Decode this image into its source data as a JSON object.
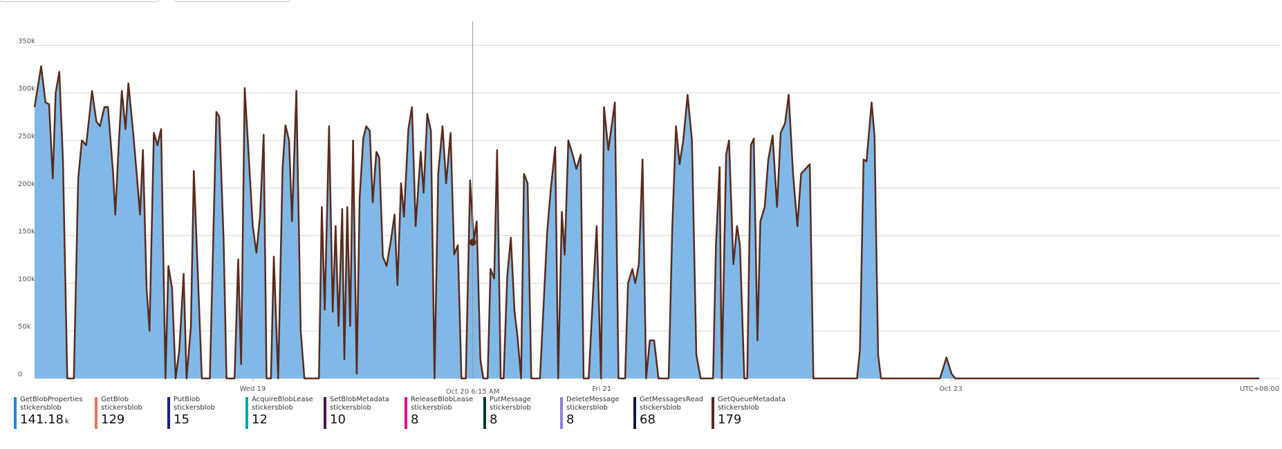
{
  "chart_data": {
    "type": "area",
    "fill": "#80b9e8",
    "line_color": "#5a2a1a",
    "x": [
      0,
      0.9,
      1.5,
      2.0,
      2.5,
      2.9,
      3.4,
      3.9,
      4.5,
      5.4,
      6.0,
      6.5,
      7.1,
      7.9,
      8.5,
      9.0,
      9.6,
      10.1,
      10.8,
      11.1,
      11.6,
      12.0,
      12.5,
      12.9,
      13.6,
      14.1,
      14.5,
      14.9,
      15.4,
      15.8,
      16.4,
      16.9,
      17.4,
      18.0,
      18.4,
      18.9,
      19.4,
      19.9,
      20.5,
      20.9,
      21.5,
      21.9,
      22.6,
      23.0,
      24.1,
      25.0,
      25.4,
      26.0,
      26.4,
      27.5,
      28.0,
      28.4,
      28.9,
      29.4,
      30.0,
      30.5,
      31.0,
      31.5,
      31.9,
      32.5,
      32.9,
      33.5,
      34.1,
      34.5,
      35.0,
      35.4,
      36.0,
      36.6,
      37.1,
      39.1,
      39.5,
      39.9,
      40.5,
      41.0,
      41.4,
      41.8,
      42.3,
      42.6,
      43.0,
      43.4,
      43.8,
      44.3,
      44.7,
      45.2,
      45.6,
      46.1,
      46.5,
      47.0,
      47.4,
      47.9,
      48.4,
      49.0,
      49.5,
      49.9,
      50.4,
      50.8,
      51.4,
      51.9,
      52.4,
      53.1,
      53.5,
      54.0,
      54.5,
      55.0,
      55.5,
      56.1,
      56.6,
      57.2,
      57.7,
      58.2,
      58.7,
      59.3,
      59.9,
      60.4,
      60.8,
      61.3,
      61.7,
      62.3,
      62.7,
      63.2,
      63.6,
      64.1,
      64.5,
      65.0,
      65.5,
      66.0,
      66.4,
      66.9,
      67.3,
      67.8,
      68.3,
      69.5,
      70.5,
      71.0,
      71.6,
      72.0,
      72.5,
      72.9,
      73.4,
      74.0,
      74.5,
      75.1,
      75.5,
      76.2,
      76.8,
      77.3,
      77.9,
      78.3,
      78.9,
      79.8,
      80.3,
      81.2,
      81.6,
      82.2,
      82.6,
      83.1,
      83.6,
      84.1,
      84.6,
      85.2,
      85.8,
      87.2,
      87.7,
      88.2,
      88.7,
      89.2,
      89.8,
      90.4,
      91.0,
      91.6,
      93.3,
      93.7,
      94.2,
      94.5,
      95.1,
      95.5,
      96.1,
      96.6,
      97.0,
      97.6,
      98.0,
      98.5,
      98.9,
      99.4,
      99.8,
      100.4,
      100.9,
      101.5,
      102.1,
      102.6,
      103.2,
      103.7,
      104.3,
      104.9,
      105.4,
      106.0,
      106.6,
      107.1,
      113.1,
      113.5,
      114.0,
      114.4,
      115.1,
      115.5,
      116.0,
      116.4,
      124.5,
      125.4,
      126.1,
      126.6,
      168.4
    ],
    "values": [
      285000,
      328000,
      290000,
      288000,
      210000,
      300000,
      322000,
      230000,
      0,
      0,
      210000,
      250000,
      245000,
      302000,
      270000,
      265000,
      285000,
      285000,
      215000,
      172000,
      250000,
      302000,
      262000,
      310000,
      255000,
      210000,
      172000,
      240000,
      95000,
      50000,
      258000,
      245000,
      262000,
      0,
      118000,
      95000,
      0,
      30000,
      110000,
      0,
      55000,
      218000,
      80000,
      0,
      0,
      280000,
      275000,
      145000,
      0,
      0,
      125000,
      15000,
      305000,
      240000,
      160000,
      132000,
      170000,
      256000,
      0,
      0,
      128000,
      0,
      220000,
      266000,
      250000,
      165000,
      302000,
      50000,
      0,
      0,
      180000,
      72000,
      265000,
      70000,
      160000,
      55000,
      178000,
      20000,
      180000,
      55000,
      250000,
      5000,
      190000,
      252000,
      265000,
      260000,
      185000,
      238000,
      232000,
      128000,
      118000,
      145000,
      172000,
      98000,
      205000,
      170000,
      262000,
      285000,
      160000,
      238000,
      195000,
      278000,
      260000,
      0,
      215000,
      265000,
      205000,
      258000,
      130000,
      140000,
      0,
      0,
      208000,
      145000,
      165000,
      20000,
      0,
      0,
      115000,
      105000,
      240000,
      0,
      0,
      108000,
      148000,
      70000,
      45000,
      0,
      215000,
      205000,
      0,
      0,
      155000,
      200000,
      243000,
      0,
      175000,
      130000,
      250000,
      235000,
      220000,
      235000,
      0,
      0,
      90000,
      160000,
      0,
      285000,
      240000,
      290000,
      0,
      0,
      100000,
      115000,
      100000,
      120000,
      230000,
      0,
      40000,
      40000,
      0,
      0,
      160000,
      265000,
      225000,
      250000,
      298000,
      250000,
      25000,
      0,
      0,
      140000,
      222000,
      0,
      235000,
      250000,
      120000,
      160000,
      140000,
      0,
      0,
      245000,
      252000,
      40000,
      165000,
      180000,
      230000,
      255000,
      180000,
      258000,
      268000,
      298000,
      215000,
      160000,
      215000,
      220000,
      225000,
      0,
      0,
      30000,
      230000,
      228000,
      290000,
      255000,
      25000,
      0,
      0,
      22000,
      5000,
      0,
      0
    ],
    "xlim": [
      0,
      168.4
    ],
    "xticks": [
      {
        "value": 30,
        "label": "Wed 19"
      },
      {
        "value": 78,
        "label": "Fri 21"
      },
      {
        "value": 126,
        "label": "Oct 23"
      }
    ],
    "ylim": [
      0,
      375000
    ],
    "yticks": [
      {
        "value": 0,
        "label": "0"
      },
      {
        "value": 50000,
        "label": "50k"
      },
      {
        "value": 100000,
        "label": "100k"
      },
      {
        "value": 150000,
        "label": "150k"
      },
      {
        "value": 200000,
        "label": "200k"
      },
      {
        "value": 250000,
        "label": "250k"
      },
      {
        "value": 300000,
        "label": "300k"
      },
      {
        "value": 350000,
        "label": "350k"
      }
    ],
    "grid": true,
    "cursor": {
      "x": 60.25,
      "value": 143000,
      "label": "Oct 20 6:15 AM"
    },
    "timezone": "UTC+08:00",
    "legend": [
      {
        "name": "GetBlobProperties",
        "resource": "stickersblob",
        "value": "141.18",
        "unit": "k",
        "color": "#1f87dc"
      },
      {
        "name": "GetBlob",
        "resource": "stickersblob",
        "value": "129",
        "color": "#e8735a"
      },
      {
        "name": "PutBlob",
        "resource": "stickersblob",
        "value": "15",
        "color": "#1b1f8a"
      },
      {
        "name": "AcquireBlobLease",
        "resource": "stickersblob",
        "value": "12",
        "color": "#0aa3a3"
      },
      {
        "name": "SetBlobMetadata",
        "resource": "stickersblob",
        "value": "10",
        "color": "#4b1650"
      },
      {
        "name": "ReleaseBlobLease",
        "resource": "stickersblob",
        "value": "8",
        "color": "#e3008c"
      },
      {
        "name": "PutMessage",
        "resource": "stickersblob",
        "value": "8",
        "color": "#013a2a"
      },
      {
        "name": "DeleteMessage",
        "resource": "stickersblob",
        "value": "8",
        "color": "#8f7fde"
      },
      {
        "name": "GetMessagesRead",
        "resource": "stickersblob",
        "value": "68",
        "color": "#0c1c3a"
      },
      {
        "name": "GetQueueMetadata",
        "resource": "stickersblob",
        "value": "179",
        "color": "#5a2a1a"
      }
    ]
  }
}
